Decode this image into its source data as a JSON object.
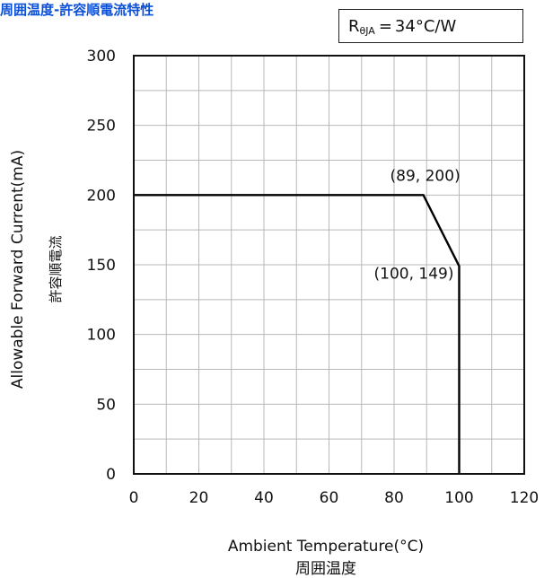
{
  "chart_title": "周囲温度-許容順電流特性",
  "legend": {
    "symbol_main": "R",
    "symbol_sub": "θJA",
    "equals": "=",
    "value": "34°C/W"
  },
  "chart_data": {
    "type": "line",
    "title": "周囲温度-許容順電流特性",
    "xlabel": "Ambient Temperature(°C)",
    "xlabel_sub": "周囲温度",
    "ylabel": "Allowable Forward Current(mA)",
    "ylabel_sub": "許容順電流",
    "xlim": [
      0,
      120
    ],
    "ylim": [
      0,
      300
    ],
    "x_ticks": [
      0,
      20,
      40,
      60,
      80,
      100,
      120
    ],
    "y_ticks": [
      0,
      50,
      100,
      150,
      200,
      250,
      300
    ],
    "grid": true,
    "series": [
      {
        "x": [
          0,
          89,
          100,
          100
        ],
        "y": [
          200,
          200,
          149,
          0
        ]
      }
    ],
    "annotations": [
      {
        "text": "(89, 200)",
        "x": 89,
        "y": 200
      },
      {
        "text": "(100, 149)",
        "x": 100,
        "y": 149
      }
    ]
  }
}
